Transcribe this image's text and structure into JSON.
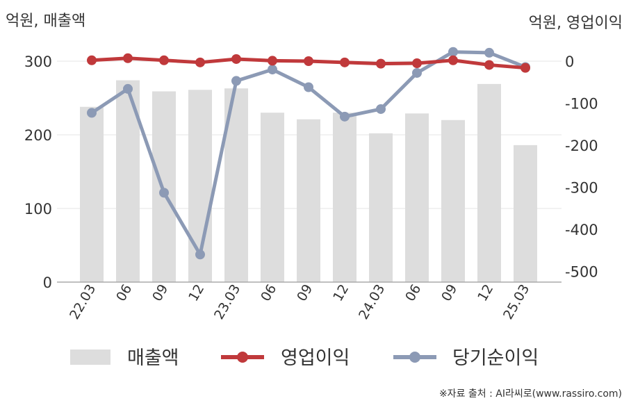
{
  "chart_data": {
    "type": "bar+line",
    "categories": [
      "22.03",
      "06",
      "09",
      "12",
      "23.03",
      "06",
      "09",
      "12",
      "24.03",
      "06",
      "09",
      "12",
      "25.03"
    ],
    "series": [
      {
        "name": "매출액",
        "type": "bar",
        "axis": "left",
        "color": "#dddddd",
        "values": [
          238,
          274,
          259,
          261,
          263,
          230,
          221,
          230,
          202,
          229,
          220,
          269,
          186
        ]
      },
      {
        "name": "영업이익",
        "type": "line",
        "axis": "right",
        "color": "#c0393b",
        "values": [
          2,
          7,
          2,
          -3,
          5,
          1,
          0,
          -3,
          -6,
          -5,
          2,
          -9,
          -16
        ]
      },
      {
        "name": "당기순이익",
        "type": "line",
        "axis": "right",
        "color": "#8c9ab5",
        "values": [
          -123,
          -66,
          -313,
          -460,
          -47,
          -20,
          -62,
          -132,
          -114,
          -28,
          22,
          20,
          -14
        ]
      }
    ],
    "left_axis": {
      "label": "억원, 매출액",
      "ylim": [
        0,
        300
      ],
      "ticks": [
        0,
        100,
        200,
        300
      ]
    },
    "right_axis": {
      "label": "억원, 영업이익",
      "ylim": [
        -530,
        0
      ],
      "ticks": [
        0,
        -100,
        -200,
        -300,
        -400,
        -500
      ],
      "tick_labels": [
        "0",
        "-100",
        "-200",
        "-300",
        "-400",
        "-500"
      ]
    },
    "grid": true,
    "legend_position": "bottom"
  },
  "source": "※자료 출처 : AI라씨로(www.rassiro.com)"
}
